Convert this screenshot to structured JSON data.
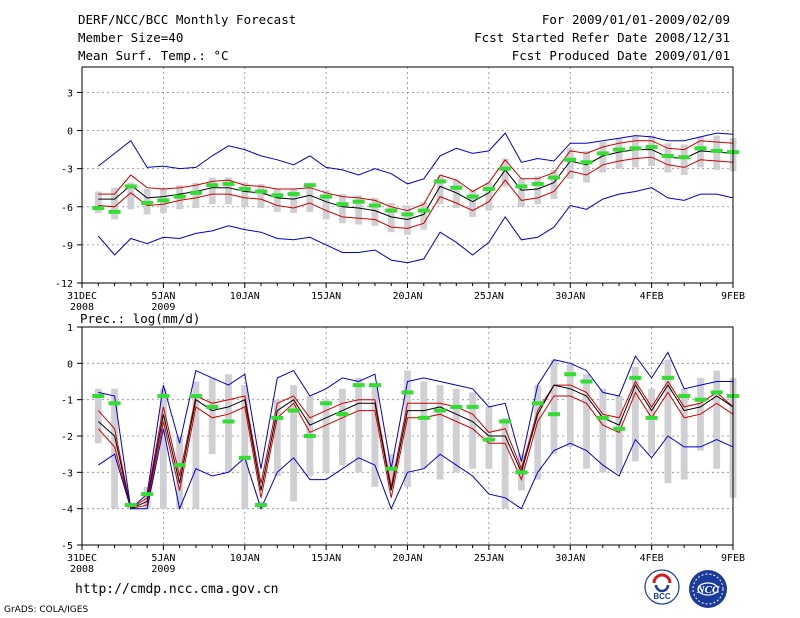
{
  "header": {
    "title": "DERF/NCC/BCC Monthly Forecast",
    "member_size": "Member Size=40",
    "variable": "Mean Surf. Temp.: °C",
    "period": "For 2009/01/01-2009/02/09",
    "started": "Fcst Started Refer Date 2008/12/31",
    "produced": "Fcst Produced Date 2009/01/01"
  },
  "footer": {
    "url": "http://cmdp.ncc.cma.gov.cn",
    "credit": "GrADS: COLA/IGES",
    "logo_bcc_text": "BCC",
    "logo_ncc_text": "NCC"
  },
  "colors": {
    "max_line": "#0000cc",
    "min_line": "#0000cc",
    "mean_line": "#000000",
    "spread_line": "#cc0000",
    "box": "#d0d0d4",
    "obs_marker": "#33dd33",
    "grid": "#888888"
  },
  "chart_data": [
    {
      "type": "line",
      "title": "Mean Surf. Temp.: °C",
      "xlabel": "",
      "ylabel": "",
      "ylim": [
        -12,
        5
      ],
      "yticks": [
        3,
        0,
        -3,
        -6,
        -9,
        -12
      ],
      "xlim": [
        0,
        40
      ],
      "xticks": [
        {
          "x": 0,
          "label": "31DEC",
          "sub": "2008"
        },
        {
          "x": 5,
          "label": "5JAN",
          "sub": "2009"
        },
        {
          "x": 10,
          "label": "10JAN",
          "sub": ""
        },
        {
          "x": 15,
          "label": "15JAN",
          "sub": ""
        },
        {
          "x": 20,
          "label": "20JAN",
          "sub": ""
        },
        {
          "x": 25,
          "label": "25JAN",
          "sub": ""
        },
        {
          "x": 30,
          "label": "30JAN",
          "sub": ""
        },
        {
          "x": 35,
          "label": "4FEB",
          "sub": ""
        },
        {
          "x": 40,
          "label": "9FEB",
          "sub": ""
        }
      ],
      "grid": true,
      "x": [
        1,
        2,
        3,
        4,
        5,
        6,
        7,
        8,
        9,
        10,
        11,
        12,
        13,
        14,
        15,
        16,
        17,
        18,
        19,
        20,
        21,
        22,
        23,
        24,
        25,
        26,
        27,
        28,
        29,
        30,
        31,
        32,
        33,
        34,
        35,
        36,
        37,
        38,
        39,
        40
      ],
      "series": [
        {
          "name": "max",
          "values": [
            -2.8,
            -1.8,
            -0.8,
            -2.9,
            -2.8,
            -3.0,
            -2.9,
            -2.0,
            -1.2,
            -1.5,
            -2.0,
            -2.3,
            -2.7,
            -2.0,
            -2.9,
            -3.1,
            -3.5,
            -3.0,
            -3.4,
            -4.2,
            -3.8,
            -2.0,
            -1.4,
            -1.8,
            -1.6,
            -0.2,
            -2.5,
            -2.2,
            -2.4,
            -1.0,
            -1.0,
            -0.8,
            -0.6,
            -0.4,
            -0.5,
            -0.8,
            -0.8,
            -0.5,
            -0.2,
            -0.3
          ]
        },
        {
          "name": "spread_high",
          "values": [
            -5.0,
            -5.0,
            -3.5,
            -4.5,
            -4.6,
            -4.5,
            -4.3,
            -4.0,
            -3.9,
            -4.3,
            -4.4,
            -4.6,
            -4.6,
            -4.5,
            -4.9,
            -5.2,
            -5.3,
            -5.5,
            -6.0,
            -6.3,
            -5.8,
            -3.5,
            -3.9,
            -4.8,
            -4.1,
            -2.3,
            -3.8,
            -3.8,
            -3.3,
            -1.6,
            -1.8,
            -1.3,
            -1.0,
            -0.8,
            -0.8,
            -1.4,
            -1.5,
            -0.8,
            -0.9,
            -1.0
          ]
        },
        {
          "name": "mean",
          "values": [
            -5.4,
            -5.4,
            -4.3,
            -5.3,
            -5.2,
            -5.0,
            -4.8,
            -4.5,
            -4.5,
            -4.8,
            -4.9,
            -5.3,
            -5.4,
            -5.1,
            -5.6,
            -6.0,
            -6.1,
            -6.3,
            -6.8,
            -7.0,
            -6.6,
            -4.4,
            -4.9,
            -5.6,
            -4.9,
            -3.1,
            -4.7,
            -4.6,
            -4.1,
            -2.4,
            -2.7,
            -2.0,
            -1.7,
            -1.5,
            -1.5,
            -2.1,
            -2.2,
            -1.6,
            -1.7,
            -1.8
          ]
        },
        {
          "name": "spread_low",
          "values": [
            -5.9,
            -6.0,
            -4.9,
            -5.9,
            -5.8,
            -5.5,
            -5.3,
            -5.0,
            -5.0,
            -5.3,
            -5.4,
            -5.9,
            -6.1,
            -5.7,
            -6.3,
            -6.8,
            -6.9,
            -7.0,
            -7.6,
            -7.7,
            -7.3,
            -5.2,
            -5.7,
            -6.3,
            -5.6,
            -3.9,
            -5.5,
            -5.3,
            -4.8,
            -3.2,
            -3.5,
            -2.7,
            -2.4,
            -2.2,
            -2.1,
            -2.7,
            -2.9,
            -2.3,
            -2.4,
            -2.5
          ]
        },
        {
          "name": "min",
          "values": [
            -8.3,
            -9.8,
            -8.5,
            -8.9,
            -8.4,
            -8.5,
            -8.1,
            -7.9,
            -7.5,
            -7.8,
            -8.0,
            -8.5,
            -8.6,
            -8.4,
            -9.0,
            -9.6,
            -9.6,
            -9.4,
            -10.2,
            -10.4,
            -10.1,
            -8.0,
            -8.8,
            -9.8,
            -8.8,
            -6.8,
            -8.6,
            -8.4,
            -7.6,
            -5.9,
            -6.2,
            -5.4,
            -5.0,
            -4.8,
            -4.5,
            -5.3,
            -5.5,
            -5.0,
            -5.0,
            -5.3
          ]
        }
      ],
      "boxes": [
        [
          -6.5,
          -4.8
        ],
        [
          -7.0,
          -4.5
        ],
        [
          -6.2,
          -4.1
        ],
        [
          -6.6,
          -4.6
        ],
        [
          -6.5,
          -4.6
        ],
        [
          -6.2,
          -4.3
        ],
        [
          -6.1,
          -4.1
        ],
        [
          -5.8,
          -3.7
        ],
        [
          -5.8,
          -3.7
        ],
        [
          -6.0,
          -4.1
        ],
        [
          -6.1,
          -4.2
        ],
        [
          -6.4,
          -4.6
        ],
        [
          -6.5,
          -4.6
        ],
        [
          -6.4,
          -4.3
        ],
        [
          -7.0,
          -4.7
        ],
        [
          -7.3,
          -5.0
        ],
        [
          -7.4,
          -5.1
        ],
        [
          -7.5,
          -5.3
        ],
        [
          -8.0,
          -5.7
        ],
        [
          -8.2,
          -5.9
        ],
        [
          -7.8,
          -5.6
        ],
        [
          -5.8,
          -3.6
        ],
        [
          -6.1,
          -3.9
        ],
        [
          -6.8,
          -4.7
        ],
        [
          -6.3,
          -4.1
        ],
        [
          -4.4,
          -2.2
        ],
        [
          -6.0,
          -3.8
        ],
        [
          -5.8,
          -3.6
        ],
        [
          -5.4,
          -3.1
        ],
        [
          -3.8,
          -1.4
        ],
        [
          -4.1,
          -1.6
        ],
        [
          -3.3,
          -0.9
        ],
        [
          -3.0,
          -0.6
        ],
        [
          -2.9,
          -0.4
        ],
        [
          -2.8,
          -0.4
        ],
        [
          -3.3,
          -1.0
        ],
        [
          -3.5,
          -1.1
        ],
        [
          -2.9,
          -0.5
        ],
        [
          -3.1,
          -0.4
        ],
        [
          -3.2,
          -0.6
        ]
      ],
      "observed": [
        -6.1,
        -6.4,
        -4.4,
        -5.7,
        -5.5,
        -5.2,
        -4.9,
        -4.3,
        -4.2,
        -4.6,
        -4.8,
        -5.1,
        -5.0,
        -4.3,
        -5.2,
        -5.8,
        -5.6,
        -5.9,
        -6.3,
        -6.6,
        -6.3,
        -4.0,
        -4.5,
        -5.2,
        -4.6,
        -3.0,
        -4.4,
        -4.2,
        -3.7,
        -2.3,
        -2.5,
        -1.8,
        -1.5,
        -1.4,
        -1.3,
        -2.0,
        -2.1,
        -1.4,
        -1.6,
        -1.7
      ]
    },
    {
      "type": "line",
      "title": "Prec.: log(mm/d)",
      "xlabel": "",
      "ylabel": "",
      "ylim": [
        -5,
        1
      ],
      "yticks": [
        1,
        0,
        -1,
        -2,
        -3,
        -4,
        -5
      ],
      "xlim": [
        0,
        40
      ],
      "xticks": [
        {
          "x": 0,
          "label": "31DEC",
          "sub": "2008"
        },
        {
          "x": 5,
          "label": "5JAN",
          "sub": "2009"
        },
        {
          "x": 10,
          "label": "10JAN",
          "sub": ""
        },
        {
          "x": 15,
          "label": "15JAN",
          "sub": ""
        },
        {
          "x": 20,
          "label": "20JAN",
          "sub": ""
        },
        {
          "x": 25,
          "label": "25JAN",
          "sub": ""
        },
        {
          "x": 30,
          "label": "30JAN",
          "sub": ""
        },
        {
          "x": 35,
          "label": "4FEB",
          "sub": ""
        },
        {
          "x": 40,
          "label": "9FEB",
          "sub": ""
        }
      ],
      "grid": true,
      "x": [
        1,
        2,
        3,
        4,
        5,
        6,
        7,
        8,
        9,
        10,
        11,
        12,
        13,
        14,
        15,
        16,
        17,
        18,
        19,
        20,
        21,
        22,
        23,
        24,
        25,
        26,
        27,
        28,
        29,
        30,
        31,
        32,
        33,
        34,
        35,
        36,
        37,
        38,
        39,
        40
      ],
      "series": [
        {
          "name": "max",
          "values": [
            -0.8,
            -0.9,
            -4.0,
            -3.6,
            -0.6,
            -2.2,
            -0.2,
            -0.4,
            -0.6,
            -0.3,
            -2.9,
            -0.4,
            -0.2,
            -0.9,
            -0.7,
            -0.4,
            -0.5,
            -0.3,
            -2.9,
            -0.5,
            -0.4,
            -0.5,
            -0.6,
            -0.7,
            -1.2,
            -1.1,
            -2.7,
            -0.6,
            0.1,
            0.0,
            -0.2,
            -0.8,
            -0.9,
            0.2,
            -0.4,
            0.3,
            -0.7,
            -0.6,
            -0.5,
            -0.5
          ]
        },
        {
          "name": "spread_high",
          "values": [
            -1.3,
            -1.8,
            -4.0,
            -3.7,
            -1.2,
            -3.1,
            -0.9,
            -1.1,
            -1.0,
            -0.9,
            -3.3,
            -1.1,
            -0.9,
            -1.5,
            -1.3,
            -1.1,
            -1.0,
            -1.0,
            -3.4,
            -1.1,
            -1.1,
            -1.1,
            -1.2,
            -1.4,
            -1.9,
            -1.8,
            -2.9,
            -1.3,
            -0.6,
            -0.6,
            -0.8,
            -1.4,
            -1.5,
            -0.5,
            -1.2,
            -0.5,
            -1.2,
            -1.1,
            -0.8,
            -1.2
          ]
        },
        {
          "name": "mean",
          "values": [
            -1.6,
            -2.0,
            -4.0,
            -3.8,
            -1.4,
            -3.3,
            -1.0,
            -1.3,
            -1.2,
            -1.0,
            -3.5,
            -1.3,
            -1.0,
            -1.7,
            -1.5,
            -1.3,
            -1.1,
            -1.1,
            -3.5,
            -1.3,
            -1.3,
            -1.2,
            -1.4,
            -1.6,
            -2.0,
            -2.0,
            -3.0,
            -1.4,
            -0.6,
            -0.7,
            -0.9,
            -1.5,
            -1.7,
            -0.6,
            -1.3,
            -0.6,
            -1.3,
            -1.2,
            -0.9,
            -1.2
          ]
        },
        {
          "name": "spread_low",
          "values": [
            -1.8,
            -2.3,
            -4.0,
            -3.9,
            -1.6,
            -3.5,
            -1.2,
            -1.5,
            -1.4,
            -1.2,
            -3.7,
            -1.5,
            -1.1,
            -1.9,
            -1.7,
            -1.5,
            -1.3,
            -1.3,
            -3.7,
            -1.5,
            -1.5,
            -1.4,
            -1.6,
            -1.8,
            -2.2,
            -2.2,
            -3.2,
            -1.6,
            -0.9,
            -0.9,
            -1.1,
            -1.7,
            -1.9,
            -0.8,
            -1.5,
            -0.8,
            -1.5,
            -1.4,
            -1.1,
            -1.4
          ]
        },
        {
          "name": "min",
          "values": [
            -2.8,
            -2.5,
            -4.0,
            -4.0,
            -1.8,
            -4.0,
            -2.9,
            -3.1,
            -3.0,
            -2.6,
            -4.0,
            -3.0,
            -2.6,
            -3.2,
            -3.2,
            -2.9,
            -2.6,
            -2.8,
            -4.0,
            -3.0,
            -2.9,
            -2.5,
            -2.8,
            -3.1,
            -3.6,
            -3.7,
            -4.0,
            -3.0,
            -2.4,
            -2.2,
            -2.4,
            -2.8,
            -3.1,
            -2.1,
            -2.6,
            -2.0,
            -2.3,
            -2.3,
            -2.1,
            -2.3
          ]
        }
      ],
      "boxes": [
        [
          -2.2,
          -0.7
        ],
        [
          -4.0,
          -0.7
        ],
        [
          -4.0,
          -3.9
        ],
        [
          -4.0,
          -3.4
        ],
        [
          -4.0,
          -0.7
        ],
        [
          -4.0,
          -2.0
        ],
        [
          -4.0,
          -0.5
        ],
        [
          -2.5,
          -0.4
        ],
        [
          -3.0,
          -0.3
        ],
        [
          -4.0,
          -0.6
        ],
        [
          -4.0,
          -3.8
        ],
        [
          -3.1,
          -1.0
        ],
        [
          -3.8,
          -0.6
        ],
        [
          -3.1,
          -0.9
        ],
        [
          -3.0,
          -1.0
        ],
        [
          -2.8,
          -0.7
        ],
        [
          -3.0,
          -0.4
        ],
        [
          -3.4,
          -0.6
        ],
        [
          -3.3,
          -2.5
        ],
        [
          -3.4,
          -0.2
        ],
        [
          -2.9,
          -0.5
        ],
        [
          -3.2,
          -0.6
        ],
        [
          -3.0,
          -0.7
        ],
        [
          -2.9,
          -0.8
        ],
        [
          -2.9,
          -1.2
        ],
        [
          -4.0,
          -1.5
        ],
        [
          -3.5,
          -2.5
        ],
        [
          -3.2,
          -0.6
        ],
        [
          -2.5,
          0.1
        ],
        [
          -2.3,
          0.0
        ],
        [
          -2.9,
          -0.3
        ],
        [
          -3.0,
          -0.7
        ],
        [
          -3.0,
          -0.9
        ],
        [
          -2.7,
          -0.1
        ],
        [
          -2.5,
          -0.7
        ],
        [
          -3.3,
          0.1
        ],
        [
          -3.2,
          -0.7
        ],
        [
          -2.4,
          -0.4
        ],
        [
          -2.9,
          -0.2
        ],
        [
          -3.7,
          -0.4
        ]
      ],
      "observed": [
        -0.9,
        -1.1,
        -3.9,
        -3.6,
        -0.9,
        -2.8,
        -0.9,
        -1.2,
        -1.6,
        -2.6,
        -3.9,
        -1.5,
        -1.3,
        -2.0,
        -1.1,
        -1.4,
        -0.6,
        -0.6,
        -2.9,
        -0.8,
        -1.5,
        -1.3,
        -1.2,
        -1.2,
        -2.1,
        -1.6,
        -3.0,
        -1.1,
        -1.4,
        -0.3,
        -0.5,
        -1.5,
        -1.8,
        -0.4,
        -1.5,
        -0.4,
        -0.9,
        -1.0,
        -0.8,
        -0.9
      ]
    }
  ]
}
